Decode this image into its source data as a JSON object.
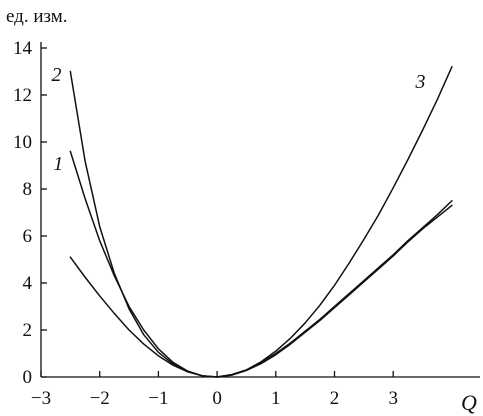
{
  "chart_data": {
    "type": "line",
    "ylabel": "ед. изм.",
    "xlabel": "Q",
    "xlim": [
      -3,
      4
    ],
    "ylim": [
      0,
      14
    ],
    "x_ticks": [
      -3,
      -2,
      -1,
      0,
      1,
      2,
      3
    ],
    "x_tick_labels": [
      "−3",
      "−2",
      "−1",
      "0",
      "1",
      "2",
      "3"
    ],
    "y_ticks": [
      0,
      2,
      4,
      6,
      8,
      10,
      12,
      14
    ],
    "y_tick_labels": [
      "0",
      "2",
      "4",
      "6",
      "8",
      "10",
      "12",
      "14"
    ],
    "grid": false,
    "line_color": "#111111",
    "series": [
      {
        "name": "1",
        "x": [
          -2.5,
          -2.25,
          -2,
          -1.75,
          -1.5,
          -1.25,
          -1,
          -0.75,
          -0.5,
          -0.25,
          0,
          0.25,
          0.5,
          0.75,
          1,
          1.25,
          1.5,
          1.75,
          2,
          2.25,
          2.5,
          2.75,
          3,
          3.25,
          3.5,
          3.75,
          4
        ],
        "y": [
          9.6,
          7.6,
          5.8,
          4.3,
          3.0,
          2.0,
          1.2,
          0.62,
          0.25,
          0.05,
          0,
          0.1,
          0.3,
          0.6,
          1.0,
          1.45,
          1.95,
          2.45,
          3.0,
          3.55,
          4.1,
          4.65,
          5.2,
          5.8,
          6.35,
          6.9,
          7.5
        ]
      },
      {
        "name": "2",
        "x": [
          -2.5,
          -2.25,
          -2,
          -1.75,
          -1.5,
          -1.25,
          -1,
          -0.75,
          -0.5,
          -0.25,
          0,
          0.25,
          0.5,
          0.75,
          1,
          1.25,
          1.5,
          1.75,
          2,
          2.25,
          2.5,
          2.75,
          3,
          3.25,
          3.5,
          3.75,
          4
        ],
        "y": [
          13.0,
          9.2,
          6.4,
          4.4,
          2.9,
          1.8,
          1.05,
          0.55,
          0.22,
          0.05,
          0,
          0.08,
          0.28,
          0.57,
          0.95,
          1.4,
          1.9,
          2.4,
          2.95,
          3.5,
          4.05,
          4.6,
          5.15,
          5.75,
          6.3,
          6.8,
          7.3
        ]
      },
      {
        "name": "3",
        "x": [
          -2.5,
          -2.25,
          -2,
          -1.75,
          -1.5,
          -1.25,
          -1,
          -0.75,
          -0.5,
          -0.25,
          0,
          0.25,
          0.5,
          0.75,
          1,
          1.25,
          1.5,
          1.75,
          2,
          2.25,
          2.5,
          2.75,
          3,
          3.25,
          3.5,
          3.75,
          4
        ],
        "y": [
          5.1,
          4.25,
          3.45,
          2.7,
          2.0,
          1.4,
          0.9,
          0.5,
          0.22,
          0.05,
          0,
          0.1,
          0.3,
          0.65,
          1.1,
          1.65,
          2.3,
          3.05,
          3.9,
          4.85,
          5.85,
          6.9,
          8.05,
          9.25,
          10.5,
          11.8,
          13.2
        ]
      }
    ]
  }
}
